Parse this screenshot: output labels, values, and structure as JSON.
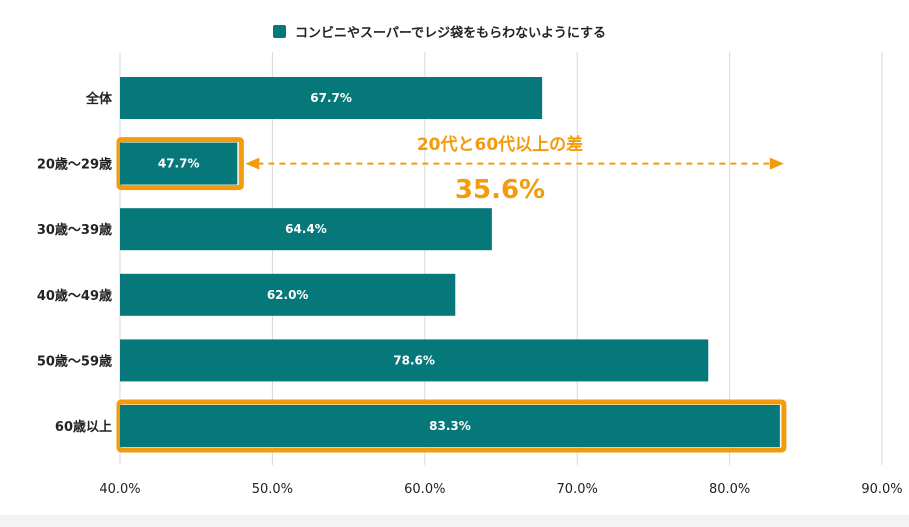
{
  "chart_data": {
    "type": "bar",
    "orientation": "horizontal",
    "title": "",
    "xlabel": "",
    "ylabel": "",
    "legend": {
      "label": "コンビニやスーパーでレジ袋をもらわないようにする",
      "color": "#06787a",
      "placement": "top-center"
    },
    "categories": [
      "全体",
      "20歳〜29歳",
      "30歳〜39歳",
      "40歳〜49歳",
      "50歳〜59歳",
      "60歳以上"
    ],
    "values": [
      67.7,
      47.7,
      64.4,
      62.0,
      78.6,
      83.3
    ],
    "value_labels": [
      "67.7%",
      "47.7%",
      "64.4%",
      "62.0%",
      "78.6%",
      "83.3%"
    ],
    "xlim": [
      40,
      90
    ],
    "ticks": [
      40,
      50,
      60,
      70,
      80,
      90
    ],
    "tick_labels": [
      "40.0%",
      "50.0%",
      "60.0%",
      "70.0%",
      "80.0%",
      "90.0%"
    ],
    "grid": true,
    "highlighted": [
      "20歳〜29歳",
      "60歳以上"
    ],
    "annotation": {
      "text": "20代と60代以上の差",
      "value": "35.6%",
      "from_value": 47.7,
      "to_value": 83.3
    },
    "colors": {
      "bar": "#06787a",
      "highlight": "#f29b0c",
      "grid": "#d8d8d8",
      "label": "#ffffff"
    }
  }
}
